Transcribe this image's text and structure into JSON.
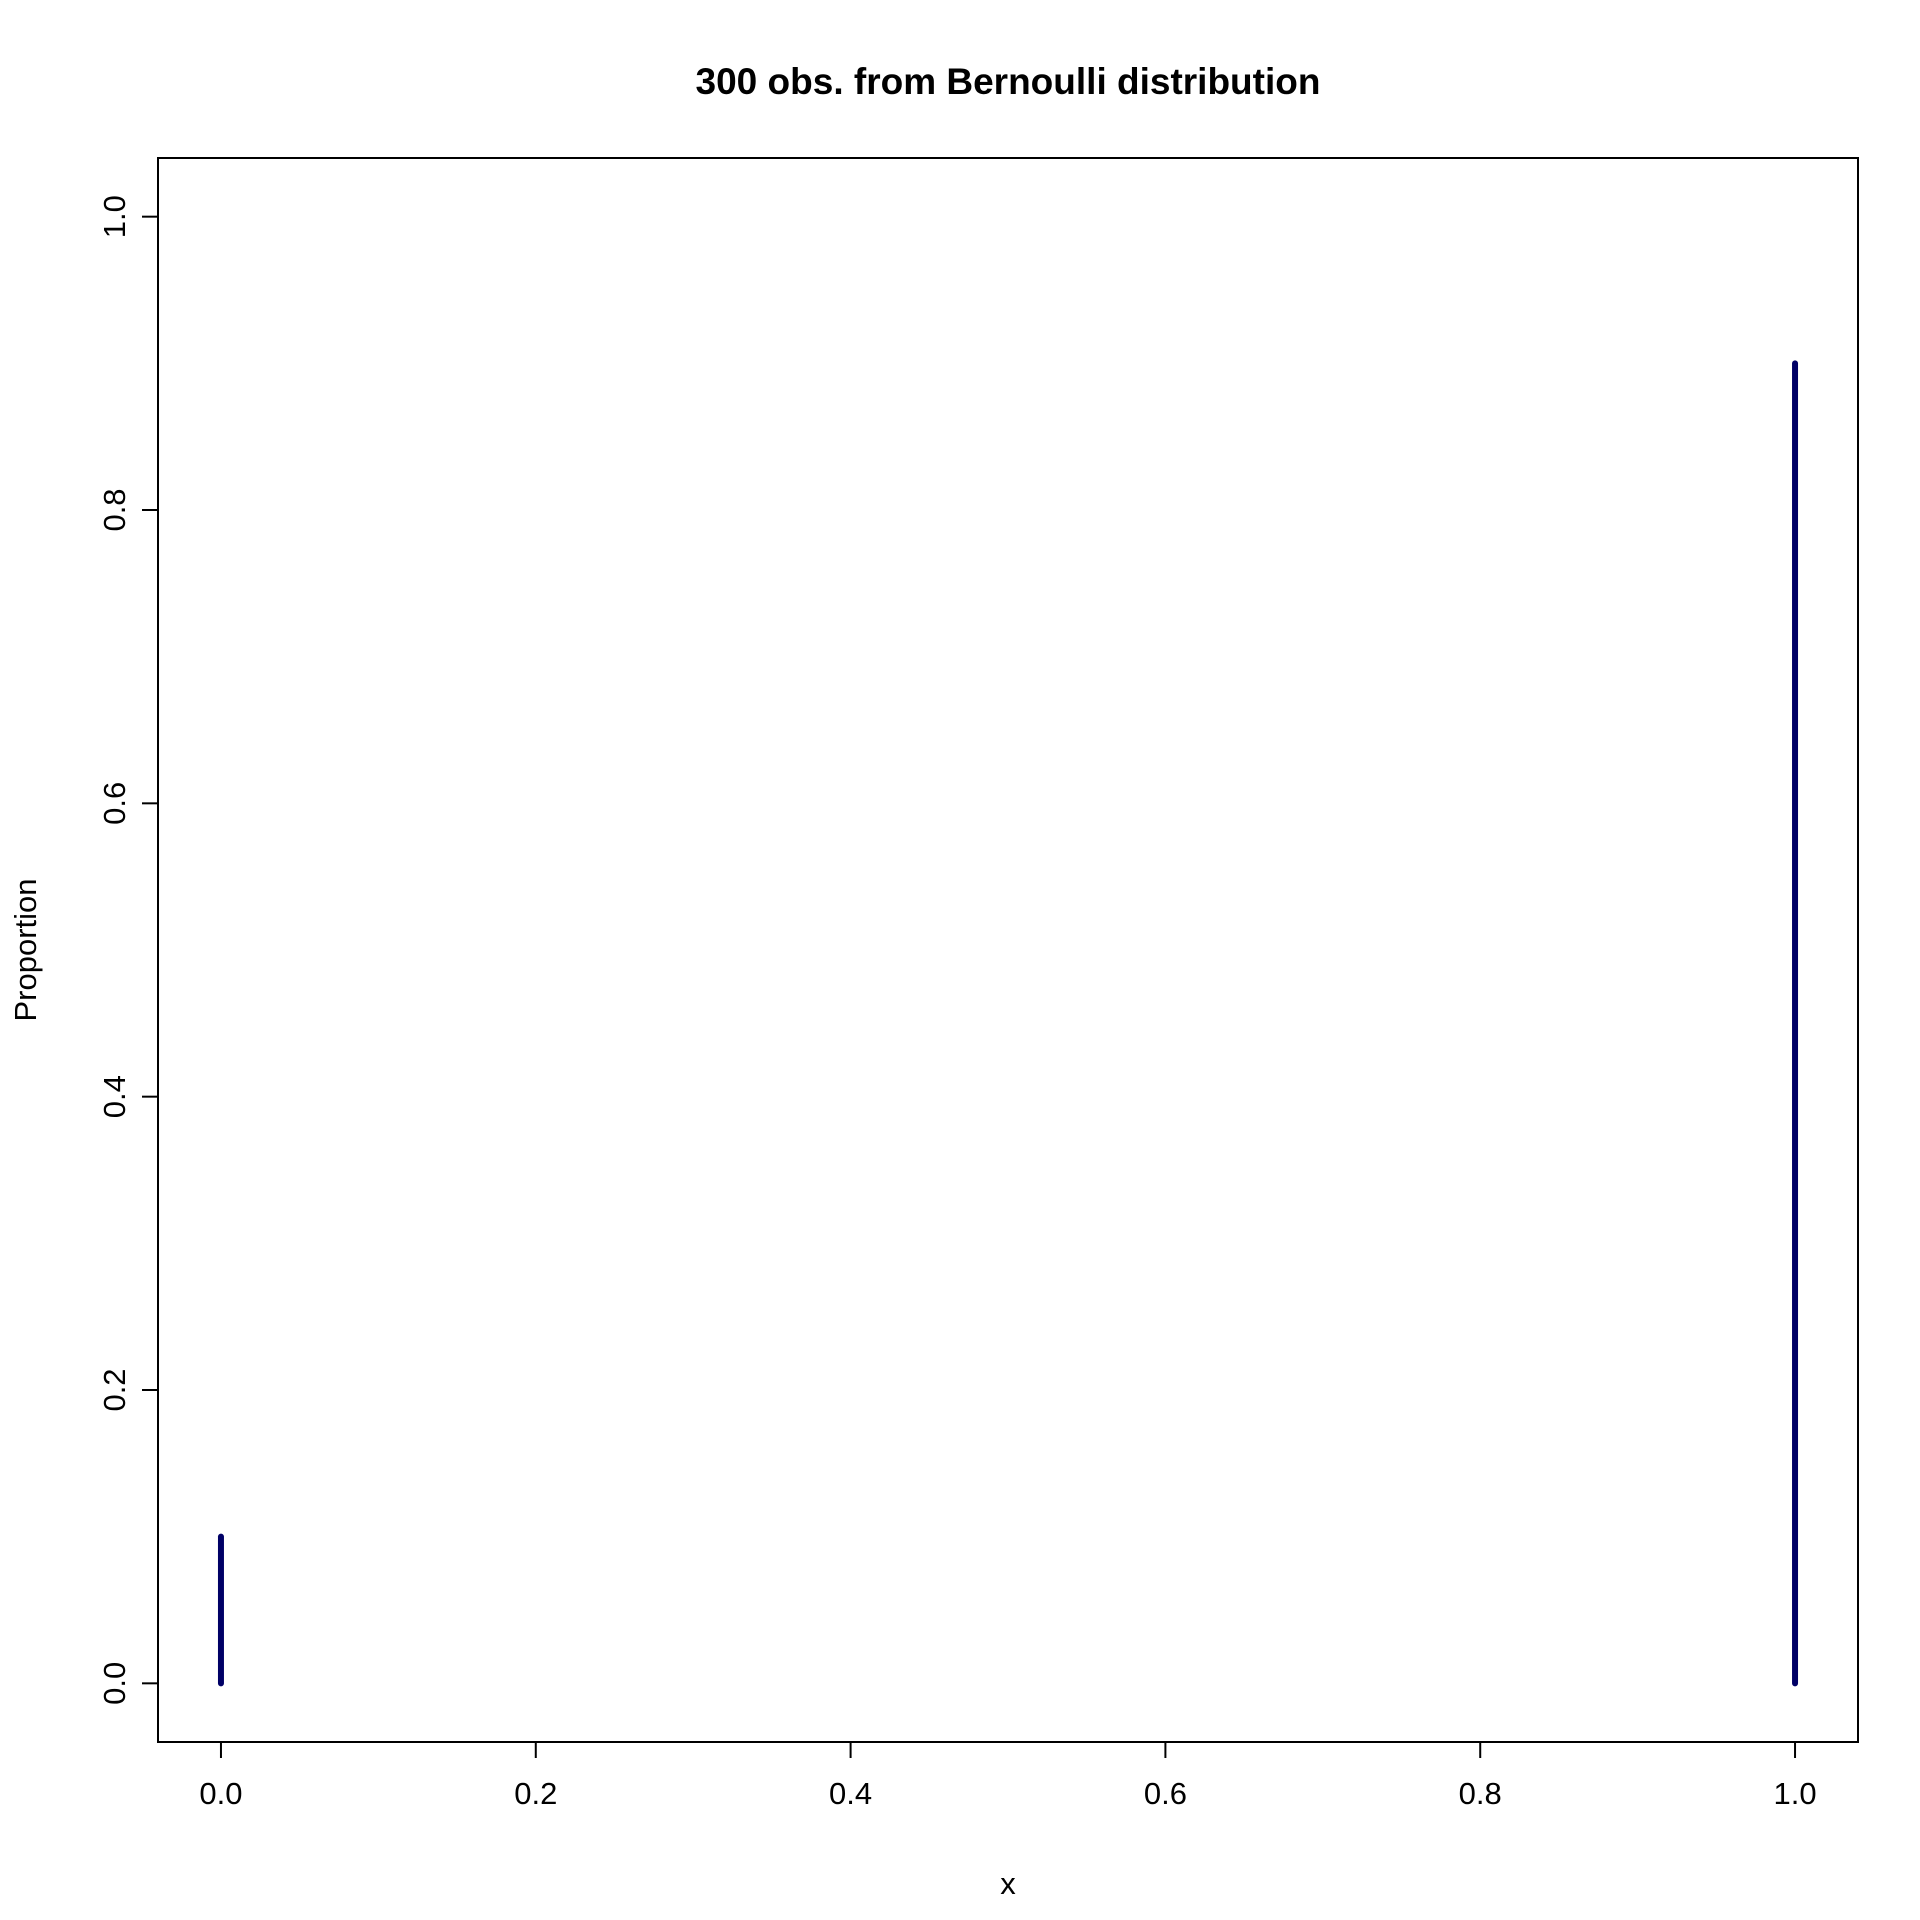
{
  "chart_data": {
    "type": "bar",
    "title": "300 obs. from Bernoulli distribution",
    "xlabel": "x",
    "ylabel": "Proportion",
    "x": [
      0,
      1
    ],
    "values": [
      0.1,
      0.9
    ],
    "xlim": [
      -0.04,
      1.04
    ],
    "ylim": [
      -0.04,
      1.04
    ],
    "x_ticks": [
      0.0,
      0.2,
      0.4,
      0.6,
      0.8,
      1.0
    ],
    "x_tick_labels": [
      "0.0",
      "0.2",
      "0.4",
      "0.6",
      "0.8",
      "1.0"
    ],
    "y_ticks": [
      0.0,
      0.2,
      0.4,
      0.6,
      0.8,
      1.0
    ],
    "y_tick_labels": [
      "0.0",
      "0.2",
      "0.4",
      "0.6",
      "0.8",
      "1.0"
    ],
    "grid": false,
    "color": "#000066"
  }
}
